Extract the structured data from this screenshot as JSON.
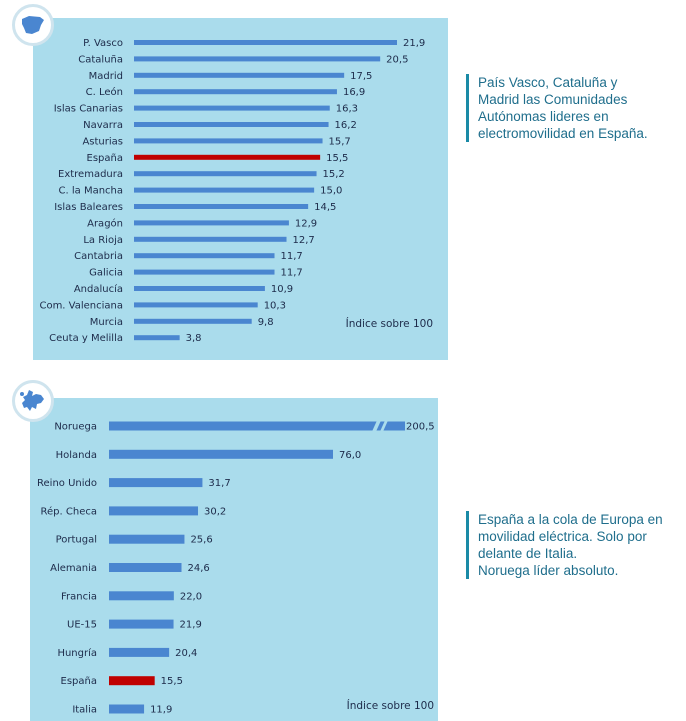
{
  "icons": {
    "spain_map": "spain-map-icon",
    "europe_map": "europe-map-icon"
  },
  "colors": {
    "panel": "#aadcec",
    "bar": "#4a86d0",
    "highlight": "#c00000",
    "caption": "#1f6e8c"
  },
  "chart_data": [
    {
      "type": "bar",
      "orientation": "horizontal",
      "categories": [
        "P. Vasco",
        "Cataluña",
        "Madrid",
        "C. León",
        "Islas Canarias",
        "Navarra",
        "Asturias",
        "España",
        "Extremadura",
        "C. la Mancha",
        "Islas Baleares",
        "Aragón",
        "La Rioja",
        "Cantabria",
        "Galicia",
        "Andalucía",
        "Com. Valenciana",
        "Murcia",
        "Ceuta y Melilla"
      ],
      "values": [
        21.9,
        20.5,
        17.5,
        16.9,
        16.3,
        16.2,
        15.7,
        15.5,
        15.2,
        15.0,
        14.5,
        12.9,
        12.7,
        11.7,
        11.7,
        10.9,
        10.3,
        9.8,
        3.8
      ],
      "value_labels": [
        "21,9",
        "20,5",
        "17,5",
        "16,9",
        "16,3",
        "16,2",
        "15,7",
        "15,5",
        "15,2",
        "15,0",
        "14,5",
        "12,9",
        "12,7",
        "11,7",
        "11,7",
        "10,9",
        "10,3",
        "9,8",
        "3,8"
      ],
      "highlight": "España",
      "annotation": "Índice sobre 100"
    },
    {
      "type": "bar",
      "orientation": "horizontal",
      "categories": [
        "Noruega",
        "Holanda",
        "Reino Unido",
        "Rép. Checa",
        "Portugal",
        "Alemania",
        "Francia",
        "UE-15",
        "Hungría",
        "España",
        "Italia"
      ],
      "values": [
        200.5,
        76.0,
        31.7,
        30.2,
        25.6,
        24.6,
        22.0,
        21.9,
        20.4,
        15.5,
        11.9
      ],
      "value_labels": [
        "200,5",
        "76,0",
        "31,7",
        "30,2",
        "25,6",
        "24,6",
        "22,0",
        "21,9",
        "20,4",
        "15,5",
        "11,9"
      ],
      "highlight": "España",
      "broken_axis_bar": "Noruega",
      "annotation": "Índice sobre 100"
    }
  ],
  "captions": {
    "spain": "País Vasco, Cataluña y\nMadrid las Comunidades\nAutónomas lideres en\nelectromovilidad en España.",
    "europe": "España a la cola de Europa en\nmovilidad eléctrica. Solo por\ndelante de Italia.\nNoruega líder absoluto."
  }
}
